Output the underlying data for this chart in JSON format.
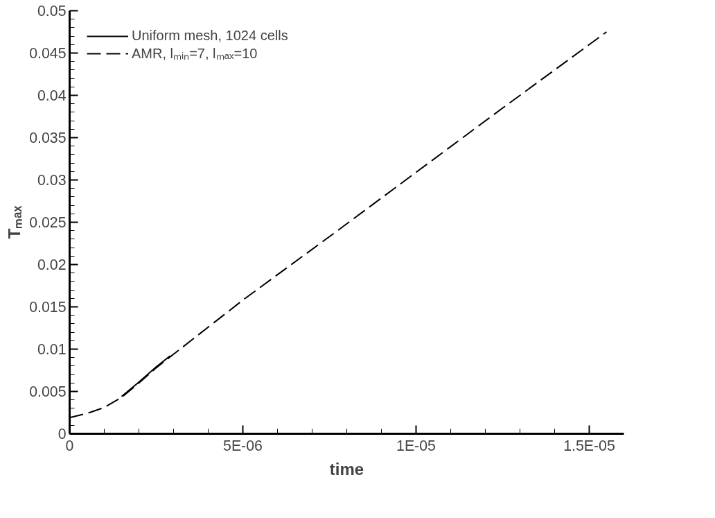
{
  "chart_data": {
    "type": "line",
    "xlabel": "time",
    "ylabel": "Tₘₐₓ",
    "xlim": [
      0,
      1.6e-05
    ],
    "ylim": [
      0,
      0.05
    ],
    "xticks": [
      {
        "value": 0,
        "label": "0"
      },
      {
        "value": 5e-06,
        "label": "5E-06"
      },
      {
        "value": 1e-05,
        "label": "1E-05"
      },
      {
        "value": 1.5e-05,
        "label": "1.5E-05"
      }
    ],
    "yticks": [
      0,
      0.005,
      0.01,
      0.015,
      0.02,
      0.025,
      0.03,
      0.035,
      0.04,
      0.045,
      0.05
    ],
    "grid": false,
    "legend": "top left",
    "series": [
      {
        "name": "Uniform mesh, 1024 cells",
        "color": "#000000",
        "line_style": "solid",
        "x": [
          1.5e-06,
          2e-06,
          2.5e-06,
          2.9e-06
        ],
        "values": [
          0.0044,
          0.0061,
          0.0079,
          0.0092
        ]
      },
      {
        "name": "AMR, lₘᵢₙ=7, lₘₐₓ=10",
        "color": "#000000",
        "line_style": "dashed",
        "x": [
          0,
          5e-07,
          1e-06,
          1.5e-06,
          2e-06,
          2.5e-06,
          3e-06,
          4e-06,
          5e-06,
          7.5e-06,
          1e-05,
          1.25e-05,
          1.55e-05
        ],
        "values": [
          0.0019,
          0.0024,
          0.0031,
          0.0043,
          0.006,
          0.0078,
          0.0094,
          0.0126,
          0.0158,
          0.0233,
          0.0309,
          0.0385,
          0.0475
        ]
      }
    ]
  }
}
